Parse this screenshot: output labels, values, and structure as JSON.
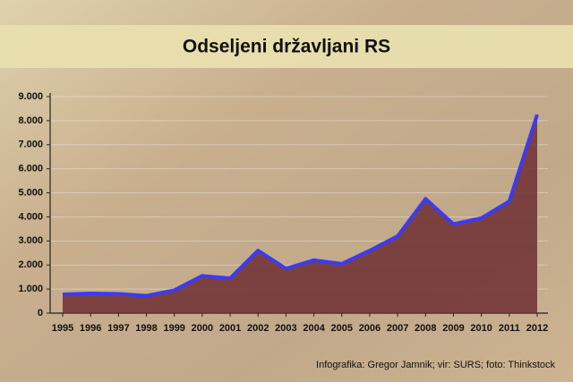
{
  "chart_data": {
    "type": "area-line",
    "title": "Odseljeni državljani RS",
    "source": "Infografika: Gregor Jamnik; vir: SURS; foto: Thinkstock",
    "categories": [
      "1995",
      "1996",
      "1997",
      "1998",
      "1999",
      "2000",
      "2001",
      "2002",
      "2003",
      "2004",
      "2005",
      "2006",
      "2007",
      "2008",
      "2009",
      "2010",
      "2011",
      "2012"
    ],
    "series": [
      {
        "name": "Odseljeni državljani",
        "color": "#3b3bf2",
        "fill": "#6e2e32",
        "values": [
          780,
          820,
          800,
          720,
          950,
          1550,
          1450,
          2600,
          1850,
          2200,
          2050,
          2600,
          3200,
          4750,
          3700,
          3950,
          4650,
          8250
        ]
      }
    ],
    "ylim": [
      0,
      9000
    ],
    "yticks": [
      0,
      {
        "value": 1000,
        "label": "1.000"
      },
      {
        "value": 2000,
        "label": "2.000"
      },
      {
        "value": 3000,
        "label": "3.000"
      },
      {
        "value": 4000,
        "label": "4.000"
      },
      {
        "value": 5000,
        "label": "5.000"
      },
      {
        "value": 6000,
        "label": "6.000"
      },
      {
        "value": 7000,
        "label": "7.000"
      },
      {
        "value": 8000,
        "label": "8.000"
      },
      {
        "value": 9000,
        "label": "9.000"
      }
    ],
    "grid": true
  }
}
